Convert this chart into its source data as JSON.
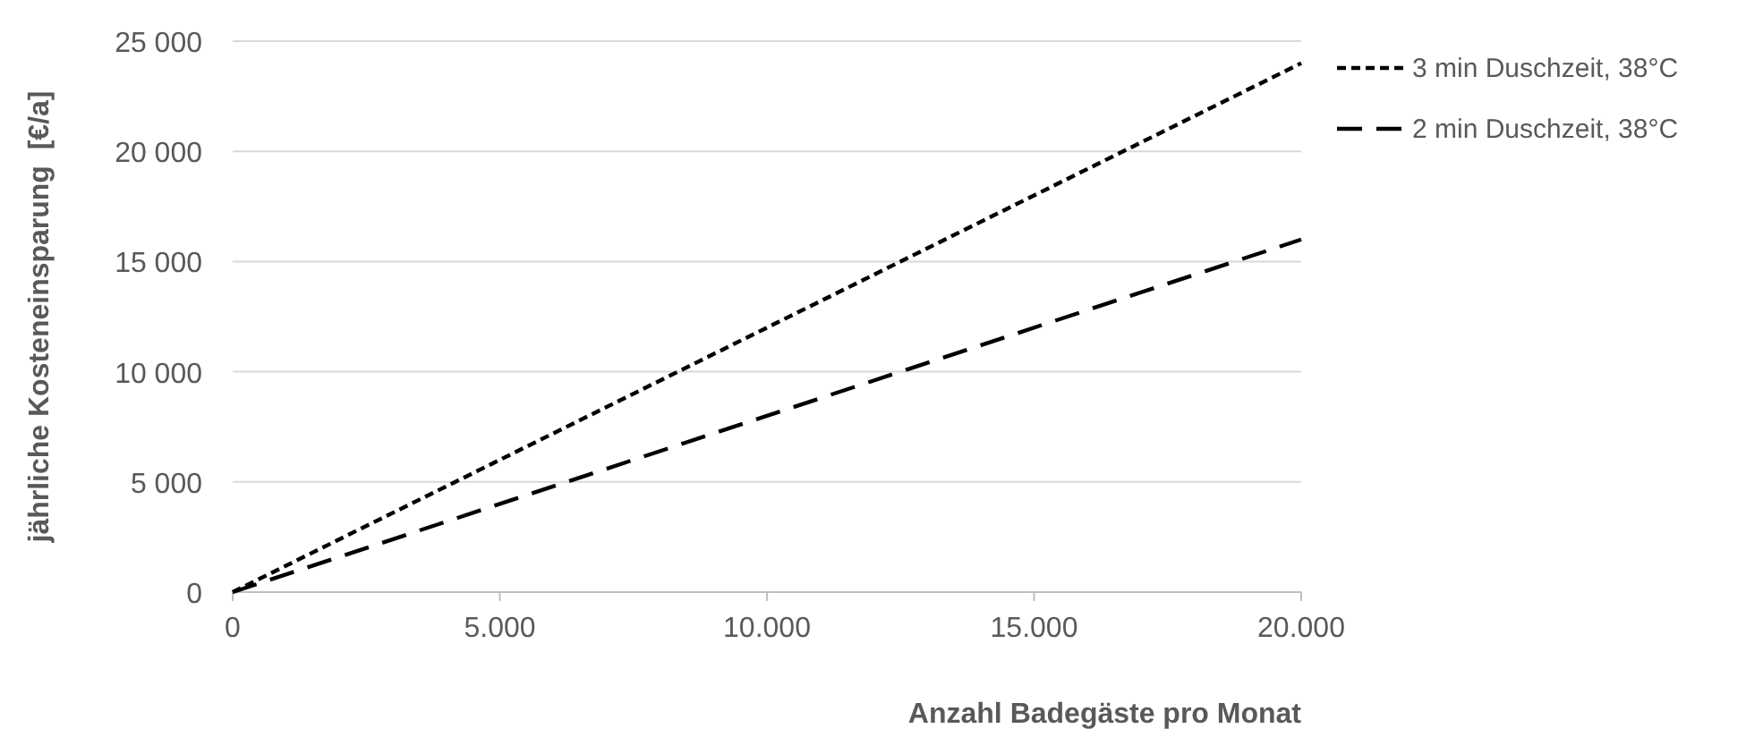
{
  "chart_data": {
    "type": "line",
    "xlabel": "Anzahl Badegäste pro Monat",
    "ylabel": "jährliche Kosteneinsparung  [€/a]",
    "x": [
      0,
      20000
    ],
    "series": [
      {
        "name": "3 min Duschzeit, 38°C",
        "color": "#000000",
        "line_style": "dotted",
        "values": [
          0,
          24000
        ]
      },
      {
        "name": "2 min Duschzeit, 38°C",
        "color": "#000000",
        "line_style": "dashed",
        "values": [
          0,
          16000
        ]
      }
    ],
    "xlim": [
      0,
      20000
    ],
    "xticks": [
      0,
      {
        "value": 5000,
        "label": "5.000"
      },
      {
        "value": 10000,
        "label": "10.000"
      },
      {
        "value": 15000,
        "label": "15.000"
      },
      {
        "value": 20000,
        "label": "20.000"
      }
    ],
    "ylim": [
      0,
      25000
    ],
    "yticks": [
      0,
      {
        "value": 5000,
        "label": "5 000"
      },
      {
        "value": 10000,
        "label": "10 000"
      },
      {
        "value": 15000,
        "label": "15 000"
      },
      {
        "value": 20000,
        "label": "20 000"
      },
      {
        "value": 25000,
        "label": "25 000"
      }
    ],
    "grid": "y",
    "legend": "right",
    "marker": "none"
  }
}
